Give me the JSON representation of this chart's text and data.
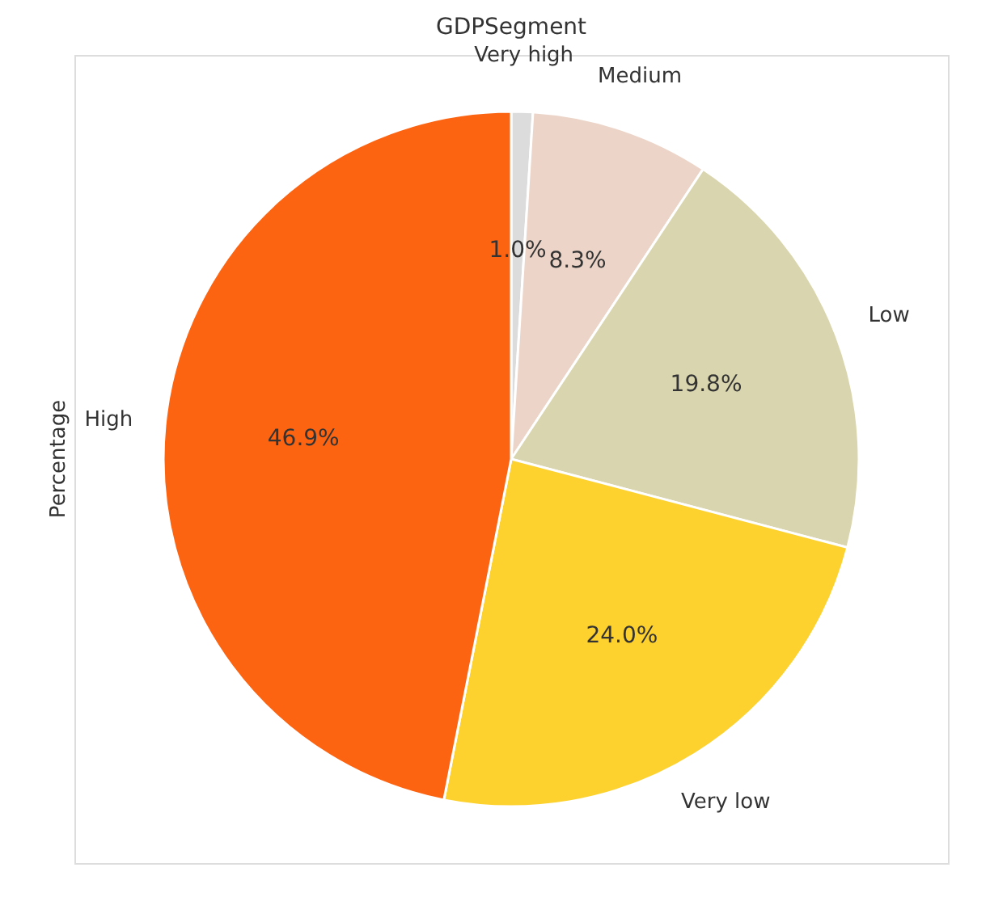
{
  "chart_data": {
    "type": "pie",
    "title": "GDPSegment",
    "ylabel": "Percentage",
    "categories": [
      "Very high",
      "Medium",
      "Low",
      "Very low",
      "High"
    ],
    "values": [
      1.0,
      8.3,
      19.8,
      24.0,
      46.9
    ],
    "colors": [
      "#dcdcdc",
      "#ecd5c8",
      "#d9d5ae",
      "#fdd12e",
      "#fd6412"
    ],
    "value_labels": [
      "1.0%",
      "8.3%",
      "19.8%",
      "24.0%",
      "46.9%"
    ],
    "legend": false
  }
}
